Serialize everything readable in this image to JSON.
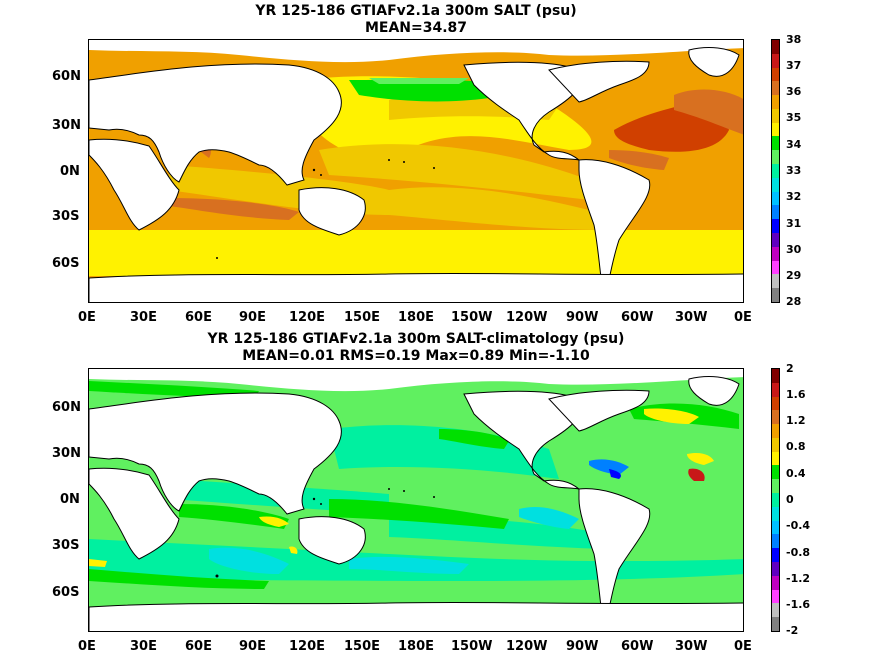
{
  "panel1": {
    "title": "YR 125-186 GTIAFv2.1a 300m SALT (psu)",
    "subtitle": "MEAN=34.87",
    "colorbar": {
      "labels": [
        "38",
        "37",
        "36",
        "35",
        "34",
        "33",
        "32",
        "31",
        "30",
        "29",
        "28"
      ],
      "colors": [
        "#800000",
        "#c81818",
        "#d04000",
        "#d87020",
        "#f0a000",
        "#f0c800",
        "#fff200",
        "#00e000",
        "#60f060",
        "#00f0a0",
        "#00e0e0",
        "#00c0ff",
        "#0080ff",
        "#0000ff",
        "#6000c0",
        "#c000c0",
        "#ff40ff",
        "#c0c0c0",
        "#808080"
      ]
    }
  },
  "panel2": {
    "title": "YR 125-186 GTIAFv2.1a 300m SALT-climatology (psu)",
    "subtitle": "MEAN=0.01   RMS=0.19   Max=0.89   Min=-1.10",
    "colorbar": {
      "labels": [
        "2",
        "1.6",
        "1.2",
        "0.8",
        "0.4",
        "0",
        "-0.4",
        "-0.8",
        "-1.2",
        "-1.6",
        "-2"
      ],
      "colors": [
        "#800000",
        "#c81818",
        "#d04000",
        "#d87020",
        "#f0a000",
        "#f0c800",
        "#fff200",
        "#00e000",
        "#60f060",
        "#00f0a0",
        "#00e0e0",
        "#00c0ff",
        "#0080ff",
        "#0000ff",
        "#6000c0",
        "#c000c0",
        "#ff40ff",
        "#c0c0c0",
        "#808080"
      ]
    }
  },
  "axes": {
    "lat_labels": [
      "60N",
      "30N",
      "0N",
      "30S",
      "60S"
    ],
    "lon_labels": [
      "0E",
      "30E",
      "60E",
      "90E",
      "120E",
      "150E",
      "180E",
      "150W",
      "120W",
      "90W",
      "60W",
      "30W",
      "0E"
    ]
  }
}
